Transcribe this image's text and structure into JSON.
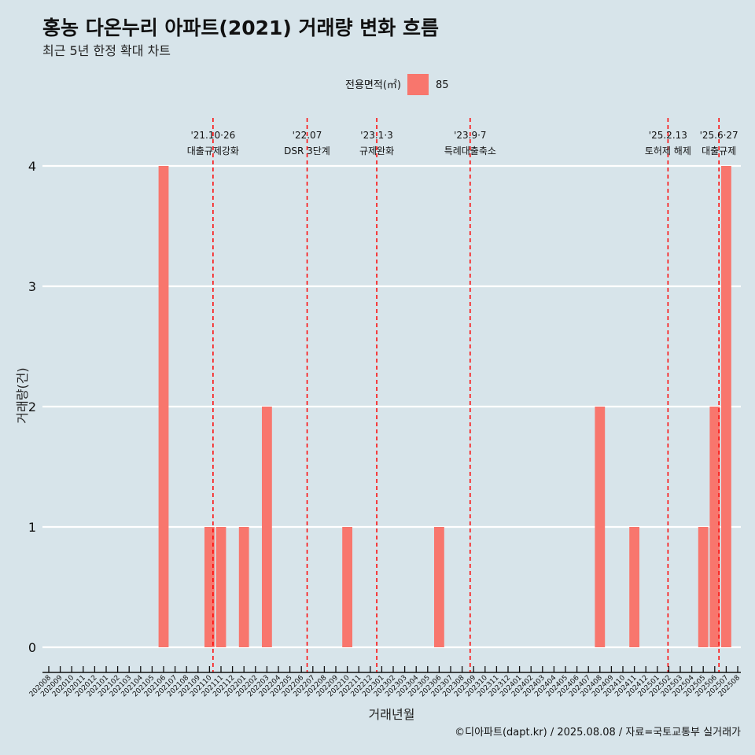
{
  "chart_data": {
    "type": "bar",
    "title": "홍농 다온누리 아파트(2021) 거래량 변화 흐름",
    "subtitle": "최근 5년 한정 확대 차트",
    "xlabel": "거래년월",
    "ylabel": "거래량(건)",
    "ylim": [
      0,
      4
    ],
    "yticks": [
      0,
      1,
      2,
      3,
      4
    ],
    "grid": "horizontal",
    "legend": {
      "title": "전용면적(㎡)",
      "position": "top",
      "entries": [
        "85"
      ]
    },
    "categories": [
      "202008",
      "202009",
      "202010",
      "202011",
      "202012",
      "202101",
      "202102",
      "202103",
      "202104",
      "202105",
      "202106",
      "202107",
      "202108",
      "202109",
      "202110",
      "202111",
      "202112",
      "202201",
      "202202",
      "202203",
      "202204",
      "202205",
      "202206",
      "202207",
      "202208",
      "202209",
      "202210",
      "202211",
      "202212",
      "202301",
      "202302",
      "202303",
      "202304",
      "202305",
      "202306",
      "202307",
      "202308",
      "202309",
      "202310",
      "202311",
      "202312",
      "202401",
      "202402",
      "202403",
      "202404",
      "202405",
      "202406",
      "202407",
      "202408",
      "202409",
      "202410",
      "202411",
      "202412",
      "202501",
      "202502",
      "202503",
      "202504",
      "202505",
      "202506",
      "202507",
      "202508"
    ],
    "series": [
      {
        "name": "85",
        "color": "#f8766d",
        "values": [
          0,
          0,
          0,
          0,
          0,
          0,
          0,
          0,
          0,
          0,
          4,
          0,
          0,
          0,
          1,
          1,
          0,
          1,
          0,
          2,
          0,
          0,
          0,
          0,
          0,
          0,
          1,
          0,
          0,
          0,
          0,
          0,
          0,
          0,
          1,
          0,
          0,
          0,
          0,
          0,
          0,
          0,
          0,
          0,
          0,
          0,
          0,
          0,
          2,
          0,
          0,
          1,
          0,
          0,
          0,
          0,
          0,
          1,
          2,
          4,
          0
        ]
      }
    ],
    "annotations": [
      {
        "date": "2021-10-26",
        "line1": "'21.10·26",
        "line2": "대출규제강화"
      },
      {
        "date": "2022-07-01",
        "line1": "'22.07",
        "line2": "DSR 3단계"
      },
      {
        "date": "2023-01-03",
        "line1": "'23.1·3",
        "line2": "규제완화"
      },
      {
        "date": "2023-09-07",
        "line1": "'23.9·7",
        "line2": "특례대출축소"
      },
      {
        "date": "2025-02-13",
        "line1": "'25.2.13",
        "line2": "토허제 해제"
      },
      {
        "date": "2025-06-27",
        "line1": "'25.6·27",
        "line2": "대출규제"
      }
    ],
    "annotation_color": "#ff0000"
  },
  "caption": "©디아파트(dapt.kr) / 2025.08.08 / 자료=국토교통부 실거래가"
}
